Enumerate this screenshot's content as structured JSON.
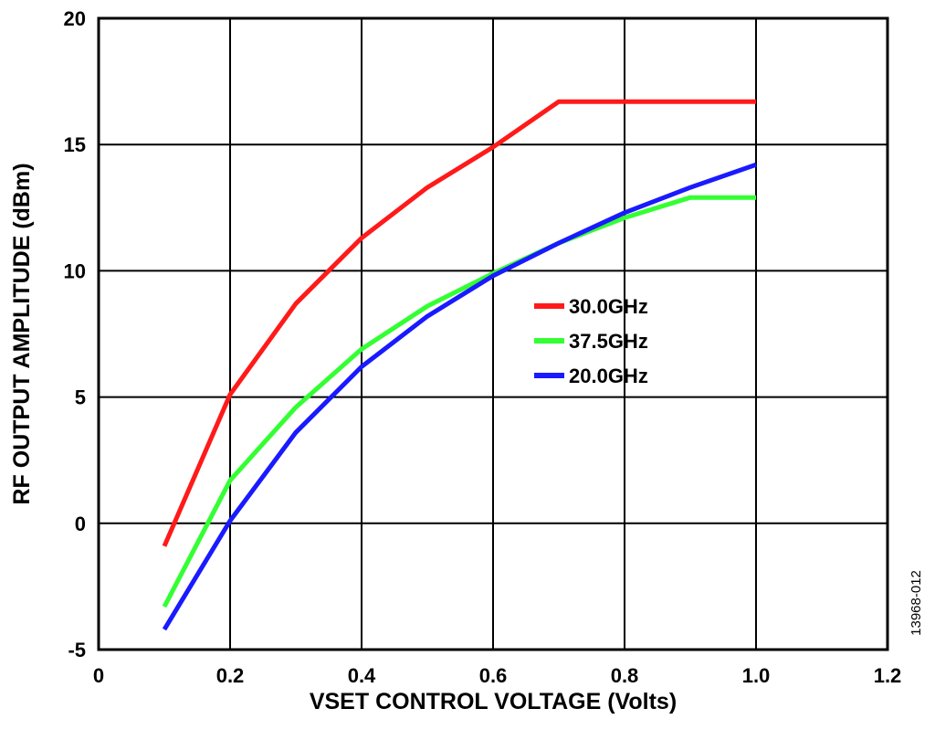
{
  "chart_data": {
    "type": "line",
    "xlabel": "VSET CONTROL VOLTAGE (Volts)",
    "ylabel": "RF OUTPUT AMPLITUDE (dBm)",
    "xlim": [
      0,
      1.2
    ],
    "ylim": [
      -5,
      20
    ],
    "xticks": [
      0,
      0.2,
      0.4,
      0.6,
      0.8,
      1.0,
      1.2
    ],
    "xtick_labels": [
      "0",
      "0.2",
      "0.4",
      "0.6",
      "0.8",
      "1.0",
      "1.2"
    ],
    "yticks": [
      -5,
      0,
      5,
      10,
      15,
      20
    ],
    "ytick_labels": [
      "-5",
      "0",
      "5",
      "10",
      "15",
      "20"
    ],
    "grid": true,
    "legend_position": "center-right",
    "series": [
      {
        "name": "30.0GHz",
        "color": "#ff1a1a",
        "x": [
          0.1,
          0.2,
          0.3,
          0.4,
          0.5,
          0.6,
          0.7,
          0.8,
          0.9,
          1.0
        ],
        "y": [
          -0.9,
          5.1,
          8.7,
          11.3,
          13.3,
          14.9,
          16.7,
          16.7,
          16.7,
          16.7
        ]
      },
      {
        "name": "37.5GHz",
        "color": "#33ff33",
        "x": [
          0.1,
          0.2,
          0.3,
          0.4,
          0.5,
          0.6,
          0.7,
          0.8,
          0.9,
          1.0
        ],
        "y": [
          -3.3,
          1.7,
          4.6,
          6.9,
          8.6,
          9.9,
          11.1,
          12.1,
          12.9,
          12.9
        ]
      },
      {
        "name": "20.0GHz",
        "color": "#1a1aff",
        "x": [
          0.1,
          0.2,
          0.3,
          0.4,
          0.5,
          0.6,
          0.7,
          0.8,
          0.9,
          1.0
        ],
        "y": [
          -4.2,
          0.1,
          3.6,
          6.2,
          8.2,
          9.8,
          11.1,
          12.3,
          13.3,
          14.2
        ]
      }
    ]
  },
  "figure_id": "13968-012"
}
